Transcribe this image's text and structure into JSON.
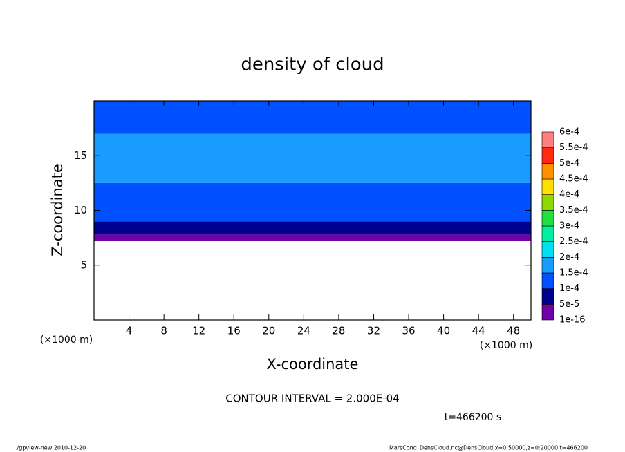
{
  "chart_data": {
    "type": "contour",
    "title": "density of cloud",
    "xlabel": "X-coordinate",
    "ylabel": "Z-coordinate",
    "xunit": "(×1000 m)",
    "xunit_right": "(×1000 m)",
    "xlim": [
      0,
      50
    ],
    "ylim": [
      0,
      20
    ],
    "xticks": [
      4,
      8,
      12,
      16,
      20,
      24,
      28,
      32,
      36,
      40,
      44,
      48
    ],
    "yticks": [
      5,
      10,
      15
    ],
    "layers": [
      {
        "z": [
          7.2,
          7.8
        ],
        "value": 3e-05
      },
      {
        "z": [
          7.8,
          9.0
        ],
        "value": 7e-05
      },
      {
        "z": [
          9.0,
          12.5
        ],
        "value": 0.00012
      },
      {
        "z": [
          12.5,
          17.0
        ],
        "value": 0.00017
      },
      {
        "z": [
          17.0,
          20
        ],
        "value": 0.00012
      }
    ],
    "levels": [
      {
        "value": 1e-16,
        "label": "1e-16"
      },
      {
        "value": 5e-05,
        "label": "5e-5"
      },
      {
        "value": 0.0001,
        "label": "1e-4"
      },
      {
        "value": 0.00015,
        "label": "1.5e-4"
      },
      {
        "value": 0.0002,
        "label": "2e-4"
      },
      {
        "value": 0.00025,
        "label": "2.5e-4"
      },
      {
        "value": 0.0003,
        "label": "3e-4"
      },
      {
        "value": 0.00035,
        "label": "3.5e-4"
      },
      {
        "value": 0.0004,
        "label": "4e-4"
      },
      {
        "value": 0.00045,
        "label": "4.5e-4"
      },
      {
        "value": 0.0005,
        "label": "5e-4"
      },
      {
        "value": 0.00055,
        "label": "5.5e-4"
      },
      {
        "value": 0.0006,
        "label": "6e-4"
      }
    ],
    "colors": [
      "#7000a8",
      "#000090",
      "#0050ff",
      "#1a9cff",
      "#00e0f0",
      "#00f0a0",
      "#20e040",
      "#90d800",
      "#ffe000",
      "#ff9000",
      "#ff2a10",
      "#ff8080"
    ],
    "contour_note": "CONTOUR INTERVAL = 2.000E-04",
    "time_note": "t=466200 s",
    "footer_left": "./gpview-new  2010-12-20",
    "footer_right": "MarsCond_DensCloud.nc@DensCloud,x=0:50000,z=0:20000,t=466200"
  }
}
